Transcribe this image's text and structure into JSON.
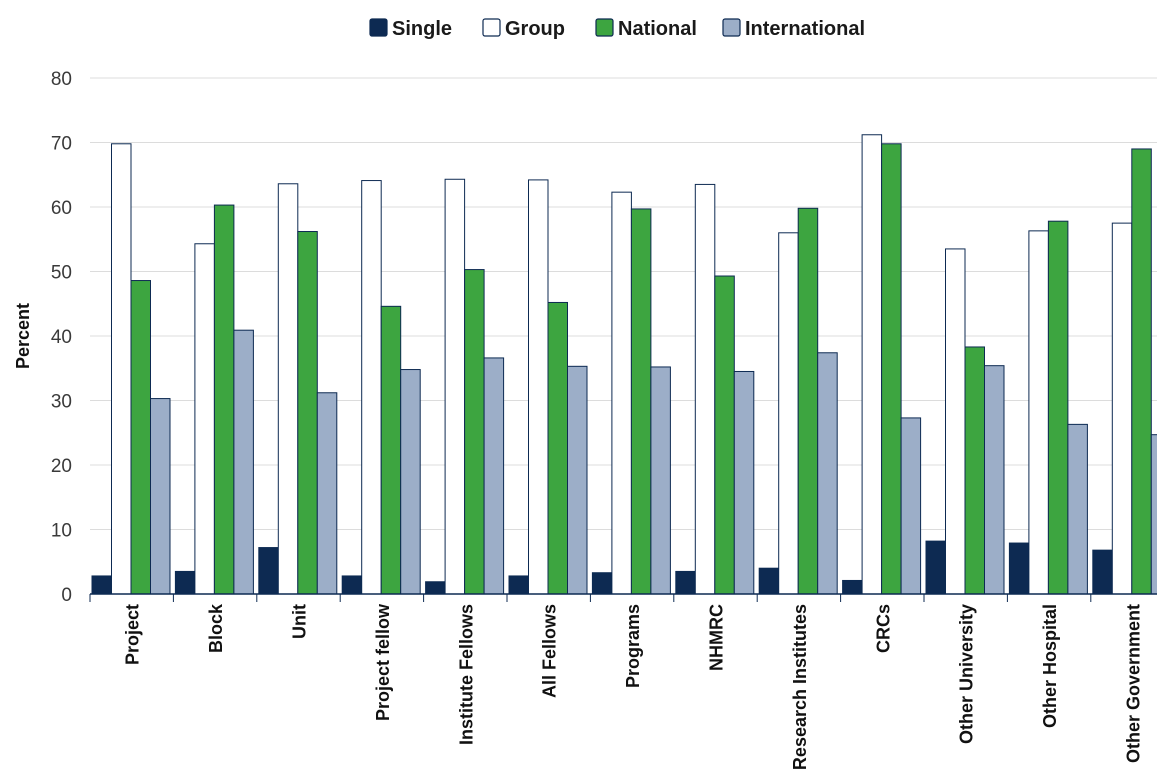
{
  "chart_data": {
    "type": "bar",
    "ylabel": "Percent",
    "xlabel": "",
    "ylim": [
      0,
      80
    ],
    "yticks": [
      0,
      10,
      20,
      30,
      40,
      50,
      60,
      70,
      80
    ],
    "grid": true,
    "legend_position": "top-center",
    "categories": [
      "Project",
      "Block",
      "Unit",
      "Project fellow",
      "Institute Fellows",
      "All Fellows",
      "Programs",
      "NHMRC",
      "Research Institutes",
      "CRCs",
      "Other University",
      "Other Hospital",
      "Other Government"
    ],
    "series": [
      {
        "name": "Single",
        "color": "#0d2a52",
        "values": [
          2.8,
          3.5,
          7.2,
          2.8,
          1.9,
          2.8,
          3.3,
          3.5,
          4.0,
          2.1,
          8.2,
          7.9,
          6.8
        ]
      },
      {
        "name": "Group",
        "color": "#ffffff",
        "values": [
          69.8,
          54.3,
          63.6,
          64.1,
          64.3,
          64.2,
          62.3,
          63.5,
          56.0,
          71.2,
          53.5,
          56.3,
          57.5
        ]
      },
      {
        "name": "National",
        "color": "#3da540",
        "values": [
          48.6,
          60.3,
          56.2,
          44.6,
          50.3,
          45.2,
          59.7,
          49.3,
          59.8,
          69.8,
          38.3,
          57.8,
          69.0
        ]
      },
      {
        "name": "International",
        "color": "#9caec8",
        "values": [
          30.3,
          40.9,
          31.2,
          34.8,
          36.6,
          35.3,
          35.2,
          34.5,
          37.4,
          27.3,
          35.4,
          26.3,
          24.7
        ]
      }
    ]
  }
}
